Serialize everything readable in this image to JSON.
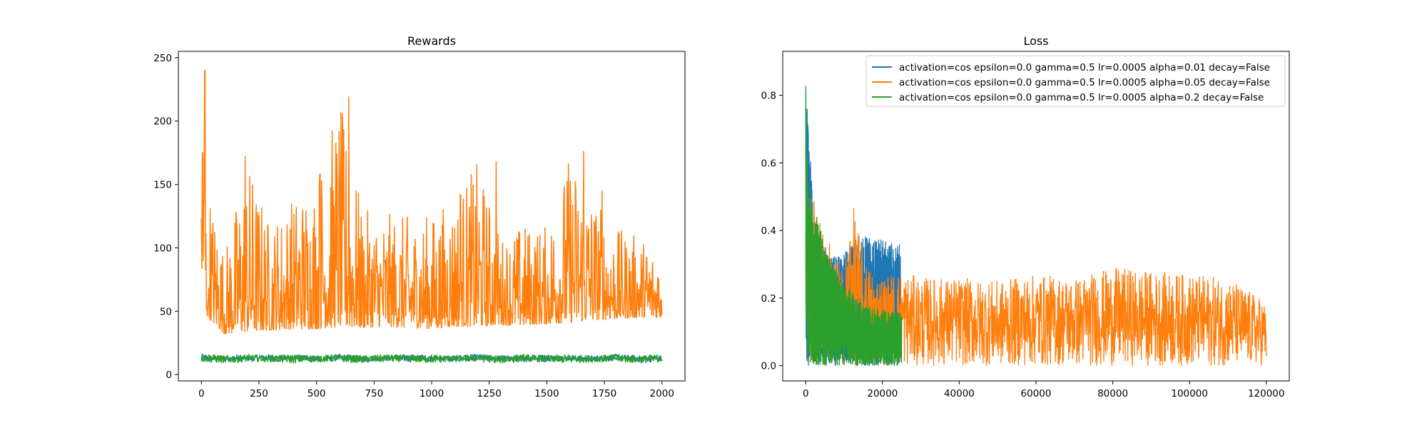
{
  "chart_data": [
    {
      "type": "line",
      "title": "Rewards",
      "xlabel": "",
      "ylabel": "",
      "xlim": [
        -100,
        2100
      ],
      "ylim": [
        -5,
        255
      ],
      "grid": false,
      "x_ticks": [
        0,
        250,
        500,
        750,
        1000,
        1250,
        1500,
        1750,
        2000
      ],
      "y_ticks": [
        0,
        50,
        100,
        150,
        200,
        250
      ],
      "series": [
        {
          "color": "#1f77b4",
          "x": [
            0,
            100,
            200,
            300,
            400,
            500,
            600,
            700,
            800,
            900,
            1000,
            1100,
            1200,
            1300,
            1400,
            1500,
            1600,
            1700,
            1800,
            1900,
            2000
          ],
          "y_min": [
            10,
            10,
            11,
            10,
            11,
            10,
            11,
            10,
            11,
            10,
            11,
            10,
            11,
            10,
            11,
            10,
            11,
            10,
            11,
            10,
            10
          ],
          "y_max": [
            16,
            15,
            15,
            16,
            15,
            15,
            16,
            15,
            15,
            16,
            15,
            15,
            16,
            15,
            15,
            16,
            15,
            15,
            16,
            15,
            15
          ]
        },
        {
          "color": "#ff7f0e",
          "x": [
            0,
            100,
            200,
            300,
            400,
            500,
            600,
            700,
            800,
            900,
            1000,
            1100,
            1200,
            1300,
            1400,
            1500,
            1600,
            1700,
            1800,
            1900,
            2000
          ],
          "y_min": [
            50,
            32,
            34,
            35,
            36,
            36,
            38,
            37,
            38,
            37,
            36,
            38,
            38,
            39,
            39,
            40,
            41,
            43,
            44,
            45,
            45
          ],
          "y_max": [
            175,
            98,
            172,
            120,
            143,
            158,
            218,
            130,
            128,
            125,
            127,
            142,
            168,
            110,
            120,
            118,
            176,
            145,
            115,
            110,
            100
          ],
          "spikes": [
            [
              5,
              175
            ],
            [
              8,
              90
            ],
            [
              12,
              140
            ],
            [
              15,
              240
            ],
            [
              30,
              60
            ],
            [
              190,
              172
            ],
            [
              640,
              219
            ],
            [
              515,
              158
            ],
            [
              1125,
              142
            ],
            [
              1280,
              168
            ],
            [
              1660,
              176
            ],
            [
              1740,
              145
            ]
          ]
        },
        {
          "color": "#2ca02c",
          "x": [
            0,
            100,
            200,
            300,
            400,
            500,
            600,
            700,
            800,
            900,
            1000,
            1100,
            1200,
            1300,
            1400,
            1500,
            1600,
            1700,
            1800,
            1900,
            2000
          ],
          "y_min": [
            10,
            9,
            10,
            10,
            9,
            10,
            10,
            9,
            10,
            10,
            9,
            10,
            10,
            9,
            10,
            10,
            9,
            10,
            10,
            9,
            10
          ],
          "y_max": [
            17,
            15,
            16,
            15,
            16,
            15,
            16,
            15,
            16,
            15,
            16,
            15,
            16,
            15,
            16,
            15,
            16,
            15,
            16,
            15,
            16
          ]
        }
      ]
    },
    {
      "type": "line",
      "title": "Loss",
      "xlabel": "",
      "ylabel": "",
      "xlim": [
        -6000,
        126000
      ],
      "ylim": [
        -0.045,
        0.93
      ],
      "grid": false,
      "legend_position": "top-right",
      "x_ticks": [
        0,
        20000,
        40000,
        60000,
        80000,
        100000,
        120000
      ],
      "y_ticks": [
        0.0,
        0.2,
        0.4,
        0.6,
        0.8
      ],
      "y_tick_labels": [
        "0.0",
        "0.2",
        "0.4",
        "0.6",
        "0.8"
      ],
      "series": [
        {
          "name": "activation=cos epsilon=0.0 gamma=0.5 lr=0.0005 alpha=0.01 decay=False",
          "color": "#1f77b4",
          "x": [
            0,
            2000,
            4000,
            6000,
            8000,
            10000,
            12000,
            14000,
            16000,
            18000,
            20000,
            22000,
            24000,
            24800
          ],
          "y_min": [
            0.0,
            0.0,
            0.0,
            0.0,
            0.0,
            0.0,
            0.0,
            0.0,
            0.0,
            0.0,
            0.0,
            0.0,
            0.0,
            0.0
          ],
          "y_max": [
            0.88,
            0.45,
            0.38,
            0.33,
            0.32,
            0.33,
            0.37,
            0.39,
            0.38,
            0.38,
            0.37,
            0.36,
            0.37,
            0.37
          ]
        },
        {
          "name": "activation=cos epsilon=0.0 gamma=0.5 lr=0.0005 alpha=0.05 decay=False",
          "color": "#ff7f0e",
          "x": [
            0,
            1000,
            2000,
            4000,
            6000,
            8000,
            10000,
            12000,
            16000,
            20000,
            24000,
            30000,
            40000,
            50000,
            60000,
            70000,
            80000,
            90000,
            100000,
            110000,
            120000
          ],
          "y_min": [
            0.0,
            0.0,
            0.0,
            0.0,
            0.0,
            0.0,
            0.0,
            0.0,
            0.0,
            0.0,
            0.0,
            0.0,
            0.0,
            0.0,
            0.0,
            0.0,
            0.0,
            0.0,
            0.0,
            0.0,
            0.0
          ],
          "y_max": [
            0.56,
            0.56,
            0.5,
            0.42,
            0.38,
            0.32,
            0.28,
            0.49,
            0.3,
            0.27,
            0.28,
            0.26,
            0.26,
            0.25,
            0.27,
            0.26,
            0.29,
            0.28,
            0.27,
            0.26,
            0.19
          ]
        },
        {
          "name": "activation=cos epsilon=0.0 gamma=0.5 lr=0.0005 alpha=0.2 decay=False",
          "color": "#2ca02c",
          "x": [
            0,
            500,
            1000,
            2000,
            3000,
            4000,
            6000,
            8000,
            10000,
            12000,
            14000,
            16000,
            18000,
            20000,
            22000,
            24000,
            25000
          ],
          "y_min": [
            0.0,
            0.0,
            0.0,
            0.0,
            0.0,
            0.0,
            0.0,
            0.0,
            0.0,
            0.0,
            0.0,
            0.0,
            0.0,
            0.0,
            0.0,
            0.0,
            0.0
          ],
          "y_max": [
            0.89,
            0.55,
            0.5,
            0.45,
            0.45,
            0.4,
            0.32,
            0.28,
            0.24,
            0.22,
            0.2,
            0.18,
            0.17,
            0.17,
            0.16,
            0.16,
            0.16
          ]
        }
      ]
    }
  ]
}
